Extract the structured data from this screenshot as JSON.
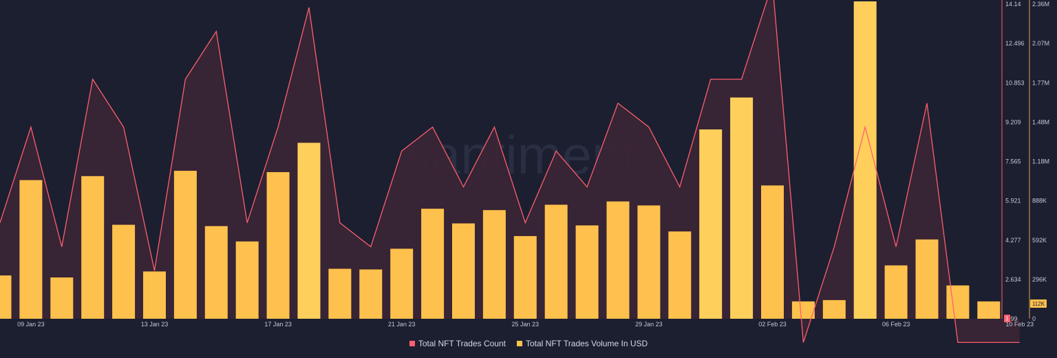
{
  "colors": {
    "background": "#1c1f30",
    "bar": "#ffc14d",
    "bar_highlight": "#ffcf5c",
    "line": "#ff5f6d",
    "area": "#3b2535",
    "axis_text": "#c5c8d6",
    "count_axis": "#ff5f6d",
    "volume_axis": "#d9a94e",
    "watermark": "#2a2e42"
  },
  "watermark": "santiment",
  "legend": [
    {
      "label": "Total NFT Trades Count",
      "color": "#ff5f6d"
    },
    {
      "label": "Total NFT Trades Volume In USD",
      "color": "#ffc14d"
    }
  ],
  "current_value_badges": {
    "count": "1",
    "volume": "112K"
  },
  "chart_data": {
    "type": "bar",
    "dates": [
      "08 Jan 23",
      "09 Jan 23",
      "10 Jan 23",
      "11 Jan 23",
      "12 Jan 23",
      "13 Jan 23",
      "14 Jan 23",
      "15 Jan 23",
      "16 Jan 23",
      "17 Jan 23",
      "18 Jan 23",
      "19 Jan 23",
      "20 Jan 23",
      "21 Jan 23",
      "22 Jan 23",
      "23 Jan 23",
      "24 Jan 23",
      "25 Jan 23",
      "26 Jan 23",
      "27 Jan 23",
      "28 Jan 23",
      "29 Jan 23",
      "30 Jan 23",
      "31 Jan 23",
      "01 Feb 23",
      "02 Feb 23",
      "03 Feb 23",
      "04 Feb 23",
      "05 Feb 23",
      "06 Feb 23",
      "07 Feb 23",
      "08 Feb 23",
      "09 Feb 23",
      "10 Feb 23"
    ],
    "x_tick_labels": [
      "09 Jan 23",
      "13 Jan 23",
      "17 Jan 23",
      "21 Jan 23",
      "25 Jan 23",
      "29 Jan 23",
      "02 Feb 23",
      "06 Feb 23",
      "10 Feb 23"
    ],
    "series": [
      {
        "name": "Total NFT Trades Count",
        "type": "area-line",
        "axis": "left",
        "values": [
          5,
          9,
          4,
          11,
          9,
          3,
          11,
          13,
          5,
          9,
          14,
          5,
          4,
          8,
          9,
          6.5,
          9,
          5,
          8,
          6.5,
          10,
          9,
          6.5,
          11,
          11,
          15,
          0,
          4,
          9,
          4,
          10,
          0,
          0,
          0
        ]
      },
      {
        "name": "Total NFT Trades Volume In USD",
        "type": "bar",
        "axis": "right",
        "values": [
          325000,
          1040000,
          310000,
          1070000,
          705000,
          355000,
          1110000,
          695000,
          580000,
          1100000,
          1320000,
          375000,
          370000,
          525000,
          825000,
          715000,
          815000,
          620000,
          855000,
          700000,
          880000,
          850000,
          655000,
          1420000,
          1660000,
          1000000,
          130000,
          140000,
          2440000,
          400000,
          595000,
          250000,
          130000,
          0
        ]
      }
    ],
    "count_axis": {
      "ticks": [
        "14.14",
        "12.496",
        "10.853",
        "9.209",
        "7.565",
        "5.921",
        "4.277",
        "2.634",
        "0.99"
      ],
      "ylim": [
        0.99,
        14.14
      ]
    },
    "volume_axis": {
      "ticks": [
        "2.36M",
        "2.07M",
        "1.77M",
        "1.48M",
        "1.18M",
        "888K",
        "592K",
        "296K",
        "0"
      ],
      "ylim": [
        0,
        2360000
      ]
    }
  }
}
